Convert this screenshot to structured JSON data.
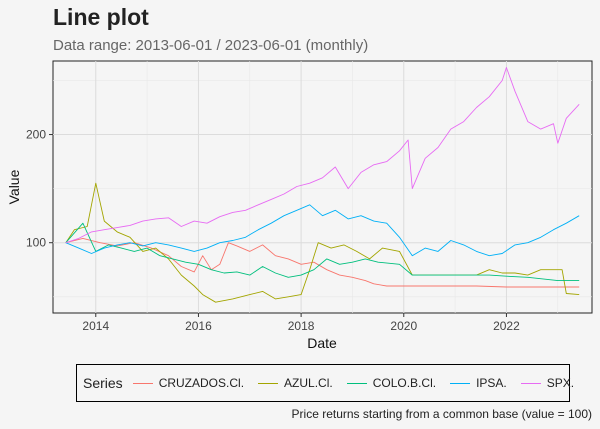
{
  "chart_data": {
    "type": "line",
    "title": "Line plot",
    "subtitle": "Data range: 2013-06-01 / 2023-06-01 (monthly)",
    "xlabel": "Date",
    "ylabel": "Value",
    "caption": "Price returns starting from a common base (value = 100)",
    "legend_title": "Series",
    "legend_position": "bottom",
    "grid": true,
    "x_ticks": [
      "2014",
      "2016",
      "2018",
      "2020",
      "2022"
    ],
    "y_ticks": [
      100,
      200
    ],
    "xlim": [
      "2013-03-01",
      "2023-09-01"
    ],
    "ylim": [
      35,
      268
    ],
    "series": [
      {
        "name": "CRUZADOS.Cl.",
        "color": "#f8766d",
        "points": [
          [
            "2013-06",
            100
          ],
          [
            "2013-10",
            104
          ],
          [
            "2014-02",
            100
          ],
          [
            "2014-06",
            97
          ],
          [
            "2014-10",
            100
          ],
          [
            "2015-02",
            95
          ],
          [
            "2015-06",
            88
          ],
          [
            "2015-09",
            78
          ],
          [
            "2015-12",
            73
          ],
          [
            "2016-02",
            88
          ],
          [
            "2016-04",
            75
          ],
          [
            "2016-06",
            80
          ],
          [
            "2016-08",
            100
          ],
          [
            "2016-10",
            97
          ],
          [
            "2017-01",
            92
          ],
          [
            "2017-04",
            98
          ],
          [
            "2017-07",
            88
          ],
          [
            "2017-10",
            85
          ],
          [
            "2018-01",
            80
          ],
          [
            "2018-04",
            82
          ],
          [
            "2018-07",
            75
          ],
          [
            "2018-10",
            70
          ],
          [
            "2019-01",
            68
          ],
          [
            "2019-04",
            65
          ],
          [
            "2019-06",
            62
          ],
          [
            "2019-09",
            60
          ],
          [
            "2020-01",
            60
          ],
          [
            "2020-06",
            60
          ],
          [
            "2021-01",
            60
          ],
          [
            "2021-06",
            60
          ],
          [
            "2022-01",
            59
          ],
          [
            "2022-06",
            59
          ],
          [
            "2023-01",
            59
          ],
          [
            "2023-06",
            59
          ]
        ]
      },
      {
        "name": "AZUL.Cl.",
        "color": "#a3a500",
        "points": [
          [
            "2013-06",
            100
          ],
          [
            "2013-08",
            112
          ],
          [
            "2013-11",
            115
          ],
          [
            "2014-01",
            155
          ],
          [
            "2014-03",
            120
          ],
          [
            "2014-06",
            110
          ],
          [
            "2014-09",
            105
          ],
          [
            "2014-12",
            92
          ],
          [
            "2015-03",
            95
          ],
          [
            "2015-06",
            85
          ],
          [
            "2015-09",
            70
          ],
          [
            "2015-12",
            60
          ],
          [
            "2016-02",
            52
          ],
          [
            "2016-05",
            45
          ],
          [
            "2016-09",
            48
          ],
          [
            "2017-01",
            52
          ],
          [
            "2017-04",
            55
          ],
          [
            "2017-07",
            48
          ],
          [
            "2017-10",
            50
          ],
          [
            "2018-01",
            52
          ],
          [
            "2018-03",
            75
          ],
          [
            "2018-05",
            100
          ],
          [
            "2018-08",
            95
          ],
          [
            "2018-11",
            98
          ],
          [
            "2019-02",
            92
          ],
          [
            "2019-05",
            85
          ],
          [
            "2019-08",
            95
          ],
          [
            "2019-12",
            92
          ],
          [
            "2020-03",
            70
          ],
          [
            "2020-09",
            70
          ],
          [
            "2021-03",
            70
          ],
          [
            "2021-06",
            70
          ],
          [
            "2021-09",
            75
          ],
          [
            "2021-12",
            72
          ],
          [
            "2022-03",
            72
          ],
          [
            "2022-06",
            70
          ],
          [
            "2022-09",
            75
          ],
          [
            "2022-12",
            75
          ],
          [
            "2023-02",
            75
          ],
          [
            "2023-03",
            53
          ],
          [
            "2023-06",
            52
          ]
        ]
      },
      {
        "name": "COLO.B.Cl.",
        "color": "#00bf7d",
        "points": [
          [
            "2013-06",
            100
          ],
          [
            "2013-10",
            118
          ],
          [
            "2014-01",
            92
          ],
          [
            "2014-04",
            98
          ],
          [
            "2014-07",
            95
          ],
          [
            "2014-10",
            92
          ],
          [
            "2015-01",
            95
          ],
          [
            "2015-04",
            88
          ],
          [
            "2015-07",
            85
          ],
          [
            "2015-10",
            82
          ],
          [
            "2016-01",
            80
          ],
          [
            "2016-04",
            75
          ],
          [
            "2016-07",
            72
          ],
          [
            "2016-10",
            73
          ],
          [
            "2017-01",
            70
          ],
          [
            "2017-04",
            78
          ],
          [
            "2017-07",
            72
          ],
          [
            "2017-10",
            68
          ],
          [
            "2018-01",
            70
          ],
          [
            "2018-04",
            75
          ],
          [
            "2018-07",
            85
          ],
          [
            "2018-10",
            80
          ],
          [
            "2019-01",
            82
          ],
          [
            "2019-04",
            85
          ],
          [
            "2019-07",
            82
          ],
          [
            "2019-12",
            80
          ],
          [
            "2020-03",
            70
          ],
          [
            "2020-09",
            70
          ],
          [
            "2021-06",
            70
          ],
          [
            "2021-09",
            70
          ],
          [
            "2022-01",
            69
          ],
          [
            "2022-06",
            68
          ],
          [
            "2023-01",
            65
          ],
          [
            "2023-06",
            65
          ]
        ]
      },
      {
        "name": "IPSA.",
        "color": "#00b0f6",
        "points": [
          [
            "2013-06",
            100
          ],
          [
            "2013-09",
            95
          ],
          [
            "2013-12",
            90
          ],
          [
            "2014-03",
            95
          ],
          [
            "2014-06",
            98
          ],
          [
            "2014-09",
            100
          ],
          [
            "2014-12",
            97
          ],
          [
            "2015-03",
            100
          ],
          [
            "2015-06",
            98
          ],
          [
            "2015-09",
            95
          ],
          [
            "2015-12",
            92
          ],
          [
            "2016-03",
            95
          ],
          [
            "2016-06",
            100
          ],
          [
            "2016-09",
            102
          ],
          [
            "2016-12",
            105
          ],
          [
            "2017-03",
            112
          ],
          [
            "2017-06",
            118
          ],
          [
            "2017-09",
            125
          ],
          [
            "2017-12",
            130
          ],
          [
            "2018-03",
            135
          ],
          [
            "2018-06",
            125
          ],
          [
            "2018-09",
            130
          ],
          [
            "2018-12",
            122
          ],
          [
            "2019-03",
            125
          ],
          [
            "2019-06",
            120
          ],
          [
            "2019-09",
            118
          ],
          [
            "2019-12",
            105
          ],
          [
            "2020-03",
            88
          ],
          [
            "2020-06",
            95
          ],
          [
            "2020-09",
            92
          ],
          [
            "2020-12",
            102
          ],
          [
            "2021-03",
            98
          ],
          [
            "2021-06",
            92
          ],
          [
            "2021-09",
            88
          ],
          [
            "2021-12",
            90
          ],
          [
            "2022-03",
            98
          ],
          [
            "2022-06",
            100
          ],
          [
            "2022-09",
            105
          ],
          [
            "2022-12",
            112
          ],
          [
            "2023-03",
            118
          ],
          [
            "2023-06",
            125
          ]
        ]
      },
      {
        "name": "SPX.",
        "color": "#e76bf3",
        "points": [
          [
            "2013-06",
            100
          ],
          [
            "2013-09",
            104
          ],
          [
            "2013-12",
            110
          ],
          [
            "2014-03",
            112
          ],
          [
            "2014-06",
            114
          ],
          [
            "2014-09",
            116
          ],
          [
            "2014-12",
            120
          ],
          [
            "2015-03",
            122
          ],
          [
            "2015-06",
            123
          ],
          [
            "2015-09",
            115
          ],
          [
            "2015-12",
            120
          ],
          [
            "2016-03",
            118
          ],
          [
            "2016-06",
            124
          ],
          [
            "2016-09",
            128
          ],
          [
            "2016-12",
            130
          ],
          [
            "2017-03",
            135
          ],
          [
            "2017-06",
            140
          ],
          [
            "2017-09",
            145
          ],
          [
            "2017-12",
            152
          ],
          [
            "2018-03",
            155
          ],
          [
            "2018-06",
            160
          ],
          [
            "2018-09",
            170
          ],
          [
            "2018-12",
            150
          ],
          [
            "2019-03",
            165
          ],
          [
            "2019-06",
            172
          ],
          [
            "2019-09",
            175
          ],
          [
            "2019-12",
            185
          ],
          [
            "2020-02",
            195
          ],
          [
            "2020-03",
            150
          ],
          [
            "2020-06",
            178
          ],
          [
            "2020-09",
            188
          ],
          [
            "2020-12",
            205
          ],
          [
            "2021-03",
            212
          ],
          [
            "2021-06",
            225
          ],
          [
            "2021-09",
            235
          ],
          [
            "2021-12",
            250
          ],
          [
            "2022-01",
            262
          ],
          [
            "2022-03",
            240
          ],
          [
            "2022-06",
            212
          ],
          [
            "2022-09",
            205
          ],
          [
            "2022-12",
            210
          ],
          [
            "2023-01",
            192
          ],
          [
            "2023-03",
            215
          ],
          [
            "2023-06",
            228
          ]
        ]
      }
    ]
  }
}
